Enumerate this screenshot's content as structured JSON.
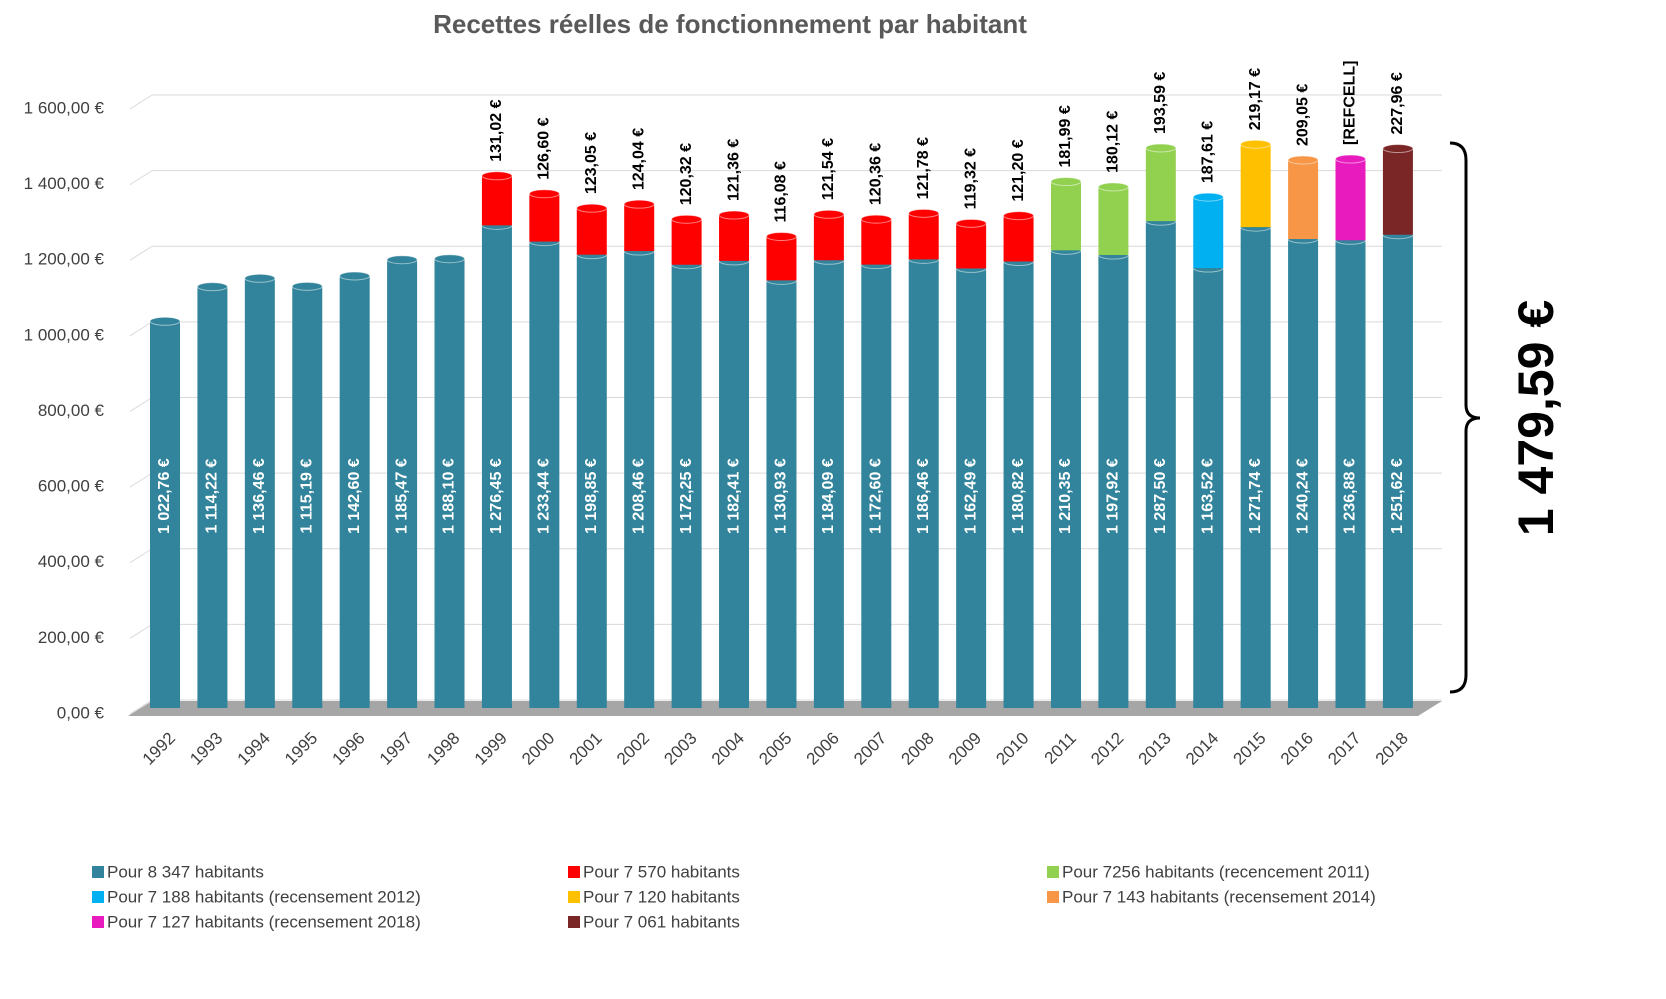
{
  "chart_data": {
    "type": "bar",
    "stacked": true,
    "title": "Recettes réelles de fonctionnement par habitant",
    "annotation": "1 479,59 €",
    "categories": [
      "1992",
      "1993",
      "1994",
      "1995",
      "1996",
      "1997",
      "1998",
      "1999",
      "2000",
      "2001",
      "2002",
      "2003",
      "2004",
      "2005",
      "2006",
      "2007",
      "2008",
      "2009",
      "2010",
      "2011",
      "2012",
      "2013",
      "2014",
      "2015",
      "2016",
      "2017",
      "2018"
    ],
    "ylim": [
      0,
      1600
    ],
    "yticks": [
      {
        "value": 0,
        "label": "0,00 €"
      },
      {
        "value": 200,
        "label": "200,00 €"
      },
      {
        "value": 400,
        "label": "400,00 €"
      },
      {
        "value": 600,
        "label": "600,00 €"
      },
      {
        "value": 800,
        "label": "800,00 €"
      },
      {
        "value": 1000,
        "label": "1 000,00 €"
      },
      {
        "value": 1200,
        "label": "1 200,00 €"
      },
      {
        "value": 1400,
        "label": "1 400,00 €"
      },
      {
        "value": 1600,
        "label": "1 600,00 €"
      }
    ],
    "grid": true,
    "legend": "bottom",
    "series": [
      {
        "name": "Pour 8 347 habitants",
        "color": "#31849b",
        "values": [
          1022.76,
          1114.22,
          1136.46,
          1115.19,
          1142.6,
          1185.47,
          1188.1,
          1276.45,
          1233.44,
          1198.85,
          1208.46,
          1172.25,
          1182.41,
          1130.93,
          1184.09,
          1172.6,
          1186.46,
          1162.49,
          1180.82,
          1210.35,
          1197.92,
          1287.5,
          1163.52,
          1271.74,
          1240.24,
          1236.88,
          1251.62
        ],
        "value_labels": [
          "1 022,76 €",
          "1 114,22 €",
          "1 136,46 €",
          "1 115,19 €",
          "1 142,60 €",
          "1 185,47 €",
          "1 188,10 €",
          "1 276,45 €",
          "1 233,44 €",
          "1 198,85 €",
          "1 208,46 €",
          "1 172,25 €",
          "1 182,41 €",
          "1 130,93 €",
          "1 184,09 €",
          "1 172,60 €",
          "1 186,46 €",
          "1 162,49 €",
          "1 180,82 €",
          "1 210,35 €",
          "1 197,92 €",
          "1 287,50 €",
          "1 163,52 €",
          "1 271,74 €",
          "1 240,24 €",
          "1 236,88 €",
          "1 251,62 €"
        ]
      },
      {
        "name": "Pour 7 570 habitants",
        "color": "#ff0000",
        "values": [
          null,
          null,
          null,
          null,
          null,
          null,
          null,
          131.02,
          126.6,
          123.05,
          124.04,
          120.32,
          121.36,
          116.08,
          121.54,
          120.36,
          121.78,
          119.32,
          121.2,
          null,
          null,
          null,
          null,
          null,
          null,
          null,
          null
        ],
        "value_labels": [
          null,
          null,
          null,
          null,
          null,
          null,
          null,
          "131,02 €",
          "126,60 €",
          "123,05 €",
          "124,04 €",
          "120,32 €",
          "121,36 €",
          "116,08 €",
          "121,54 €",
          "120,36 €",
          "121,78 €",
          "119,32 €",
          "121,20 €",
          null,
          null,
          null,
          null,
          null,
          null,
          null,
          null
        ]
      },
      {
        "name": "Pour 7256 habitants (recencement 2011)",
        "color": "#92d050",
        "values": [
          null,
          null,
          null,
          null,
          null,
          null,
          null,
          null,
          null,
          null,
          null,
          null,
          null,
          null,
          null,
          null,
          null,
          null,
          null,
          181.99,
          180.12,
          193.59,
          null,
          null,
          null,
          null,
          null
        ],
        "value_labels": [
          null,
          null,
          null,
          null,
          null,
          null,
          null,
          null,
          null,
          null,
          null,
          null,
          null,
          null,
          null,
          null,
          null,
          null,
          null,
          "181,99 €",
          "180,12 €",
          "193,59 €",
          null,
          null,
          null,
          null,
          null
        ]
      },
      {
        "name": "Pour 7 188 habitants (recensement 2012)",
        "color": "#00b0f0",
        "values": [
          null,
          null,
          null,
          null,
          null,
          null,
          null,
          null,
          null,
          null,
          null,
          null,
          null,
          null,
          null,
          null,
          null,
          null,
          null,
          null,
          null,
          null,
          187.61,
          null,
          null,
          null,
          null
        ],
        "value_labels": [
          null,
          null,
          null,
          null,
          null,
          null,
          null,
          null,
          null,
          null,
          null,
          null,
          null,
          null,
          null,
          null,
          null,
          null,
          null,
          null,
          null,
          null,
          "187,61 €",
          null,
          null,
          null,
          null
        ]
      },
      {
        "name": "Pour 7 120 habitants",
        "color": "#ffc000",
        "values": [
          null,
          null,
          null,
          null,
          null,
          null,
          null,
          null,
          null,
          null,
          null,
          null,
          null,
          null,
          null,
          null,
          null,
          null,
          null,
          null,
          null,
          null,
          null,
          219.17,
          null,
          null,
          null
        ],
        "value_labels": [
          null,
          null,
          null,
          null,
          null,
          null,
          null,
          null,
          null,
          null,
          null,
          null,
          null,
          null,
          null,
          null,
          null,
          null,
          null,
          null,
          null,
          null,
          null,
          "219,17 €",
          null,
          null,
          null
        ]
      },
      {
        "name": "Pour 7 143 habitants (recensement 2014)",
        "color": "#f79646",
        "values": [
          null,
          null,
          null,
          null,
          null,
          null,
          null,
          null,
          null,
          null,
          null,
          null,
          null,
          null,
          null,
          null,
          null,
          null,
          null,
          null,
          null,
          null,
          null,
          null,
          209.05,
          null,
          null
        ],
        "value_labels": [
          null,
          null,
          null,
          null,
          null,
          null,
          null,
          null,
          null,
          null,
          null,
          null,
          null,
          null,
          null,
          null,
          null,
          null,
          null,
          null,
          null,
          null,
          null,
          null,
          "209,05 €",
          null,
          null
        ]
      },
      {
        "name": "Pour 7 127 habitants (recensement 2018)",
        "color": "#e81cbe",
        "values": [
          null,
          null,
          null,
          null,
          null,
          null,
          null,
          null,
          null,
          null,
          null,
          null,
          null,
          null,
          null,
          null,
          null,
          null,
          null,
          null,
          null,
          null,
          null,
          null,
          null,
          215,
          null
        ],
        "value_labels": [
          null,
          null,
          null,
          null,
          null,
          null,
          null,
          null,
          null,
          null,
          null,
          null,
          null,
          null,
          null,
          null,
          null,
          null,
          null,
          null,
          null,
          null,
          null,
          null,
          null,
          "[REFCELL]",
          null
        ]
      },
      {
        "name": "Pour 7 061 habitants",
        "color": "#7b2626",
        "values": [
          null,
          null,
          null,
          null,
          null,
          null,
          null,
          null,
          null,
          null,
          null,
          null,
          null,
          null,
          null,
          null,
          null,
          null,
          null,
          null,
          null,
          null,
          null,
          null,
          null,
          null,
          227.96
        ],
        "value_labels": [
          null,
          null,
          null,
          null,
          null,
          null,
          null,
          null,
          null,
          null,
          null,
          null,
          null,
          null,
          null,
          null,
          null,
          null,
          null,
          null,
          null,
          null,
          null,
          null,
          null,
          null,
          "227,96 €"
        ]
      }
    ]
  }
}
